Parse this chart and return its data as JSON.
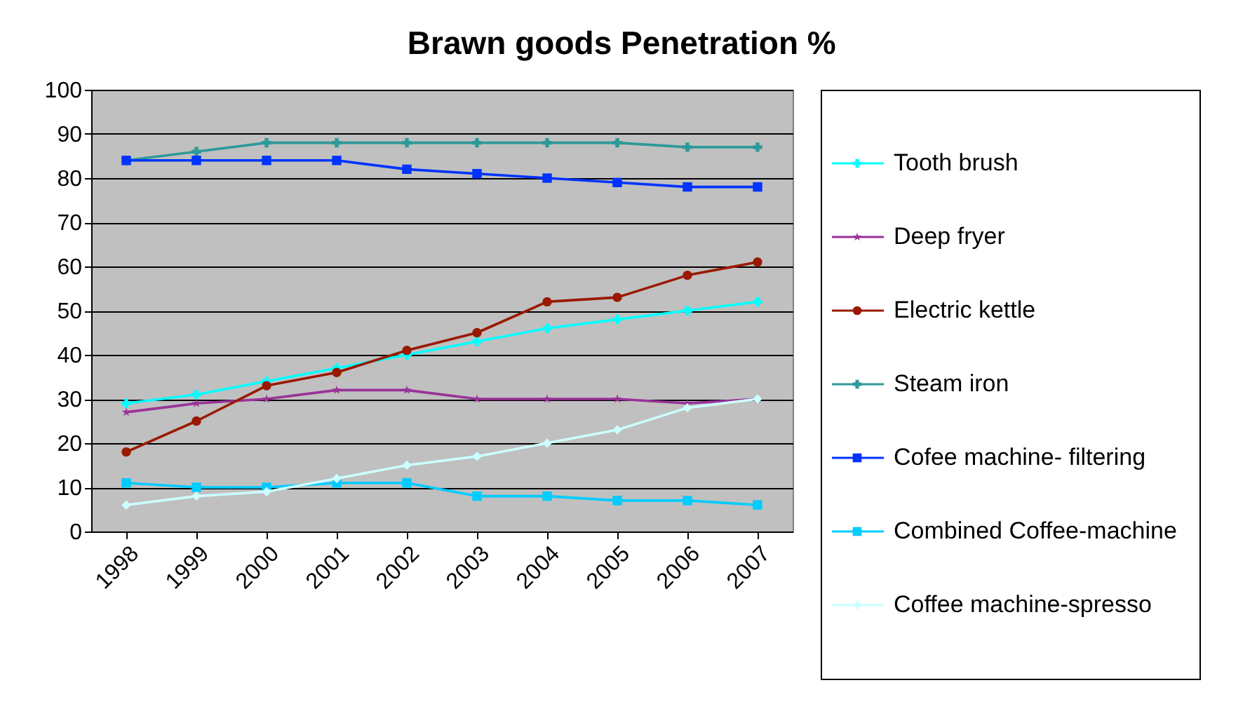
{
  "chart_data": {
    "type": "line",
    "title": "Brawn goods Penetration %",
    "categories": [
      "1998",
      "1999",
      "2000",
      "2001",
      "2002",
      "2003",
      "2004",
      "2005",
      "2006",
      "2007"
    ],
    "ylim": [
      0,
      100
    ],
    "yticks": [
      0,
      10,
      20,
      30,
      40,
      50,
      60,
      70,
      80,
      90,
      100
    ],
    "grid": "y",
    "legend": "right",
    "line_style": "solid",
    "series": [
      {
        "name": "Tooth brush",
        "color": "#00ffff",
        "marker": "cross",
        "values": [
          29,
          31,
          34,
          37,
          40,
          43,
          46,
          48,
          50,
          52
        ]
      },
      {
        "name": "Deep fryer",
        "color": "#993399",
        "marker": "star",
        "values": [
          27,
          29,
          30,
          32,
          32,
          30,
          30,
          30,
          29,
          30
        ]
      },
      {
        "name": "Electric kettle",
        "color": "#991a00",
        "marker": "circle",
        "values": [
          18,
          25,
          33,
          36,
          41,
          45,
          52,
          53,
          58,
          61
        ]
      },
      {
        "name": "Steam iron",
        "color": "#2e9999",
        "marker": "cross",
        "values": [
          84,
          86,
          88,
          88,
          88,
          88,
          88,
          88,
          87,
          87
        ]
      },
      {
        "name": "Cofee machine- filtering",
        "color": "#0033ff",
        "marker": "square",
        "values": [
          84,
          84,
          84,
          84,
          82,
          81,
          80,
          79,
          78,
          78
        ]
      },
      {
        "name": "Combined Coffee-machine",
        "color": "#00ccff",
        "marker": "square",
        "values": [
          11,
          10,
          10,
          11,
          11,
          8,
          8,
          7,
          7,
          6
        ]
      },
      {
        "name": "Coffee machine-spresso",
        "color": "#ccffff",
        "marker": "diamond",
        "values": [
          6,
          8,
          9,
          12,
          15,
          17,
          20,
          23,
          28,
          30
        ]
      }
    ]
  }
}
